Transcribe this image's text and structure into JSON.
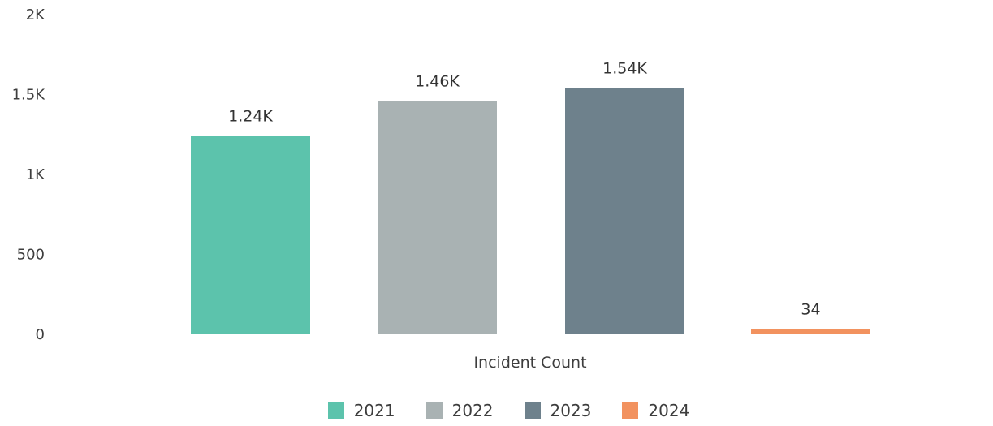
{
  "chart_data": {
    "type": "bar",
    "xlabel": "Incident Count",
    "ylabel": "",
    "ylim": [
      0,
      2000
    ],
    "yticks": [
      {
        "value": 0,
        "label": "0"
      },
      {
        "value": 500,
        "label": "500"
      },
      {
        "value": 1000,
        "label": "1K"
      },
      {
        "value": 1500,
        "label": "1.5K"
      },
      {
        "value": 2000,
        "label": "2K"
      }
    ],
    "grid": false,
    "legend_position": "bottom",
    "categories": [
      "Incident Count"
    ],
    "series": [
      {
        "name": "2021",
        "values": [
          1240
        ],
        "data_label": "1.24K",
        "color": "#5cc3ac"
      },
      {
        "name": "2022",
        "values": [
          1460
        ],
        "data_label": "1.46K",
        "color": "#a9b2b3"
      },
      {
        "name": "2023",
        "values": [
          1540
        ],
        "data_label": "1.54K",
        "color": "#6e818c"
      },
      {
        "name": "2024",
        "values": [
          34
        ],
        "data_label": "34",
        "color": "#f2925f"
      }
    ]
  }
}
